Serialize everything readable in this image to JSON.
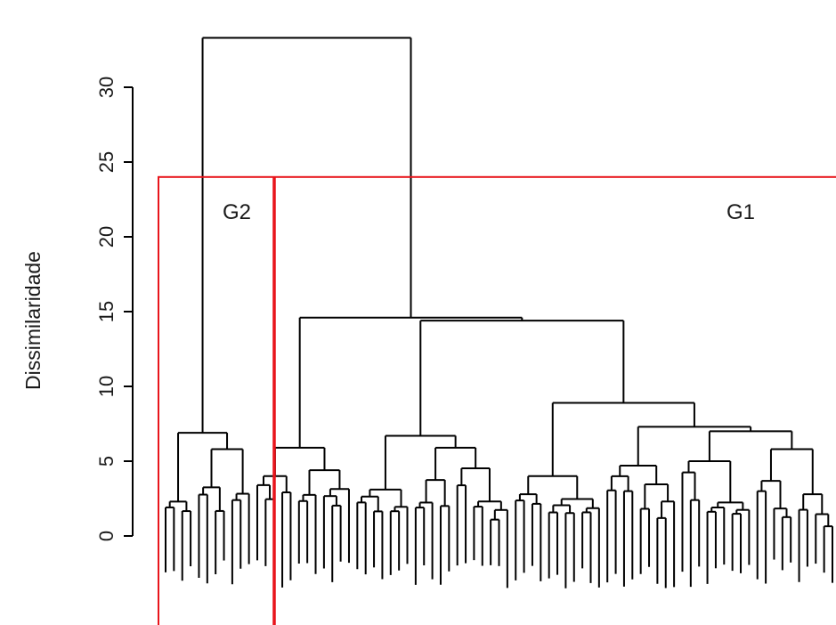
{
  "chart_data": {
    "type": "dendrogram",
    "ylabel": "Dissimilaridade",
    "ylim": [
      -3.5,
      35
    ],
    "yticks": [
      0,
      5,
      10,
      15,
      20,
      25,
      30
    ],
    "cut_height": 24,
    "groups": [
      {
        "label": "G2"
      },
      {
        "label": "G1"
      }
    ],
    "merges": [
      {
        "name": "root",
        "height": 33.3
      },
      {
        "name": "G1",
        "height": 14.6
      },
      {
        "name": "G1-right",
        "height": 14.4
      },
      {
        "name": "G1-right-b",
        "height": 8.9
      },
      {
        "name": "G1-left",
        "height": 5.9
      },
      {
        "name": "G1-mid",
        "height": 6.7
      },
      {
        "name": "G2",
        "height": 6.9
      }
    ],
    "colors": {
      "dendrogram": "#000000",
      "cut": "#e8141b"
    }
  }
}
